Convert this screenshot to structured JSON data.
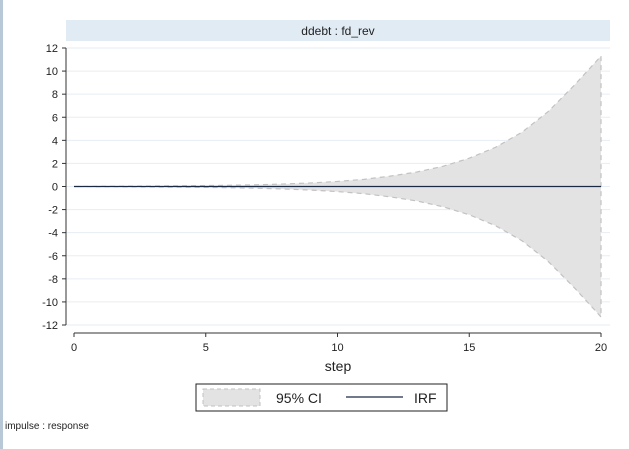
{
  "colors": {
    "panel_header": "#e1ebf3",
    "ci_fill": "#e3e3e3",
    "ci_stroke": "#c2c2c2",
    "irf_line": "#1a2a44",
    "grid": "#e6edf3",
    "axis": "#333333"
  },
  "chart_data": {
    "type": "area",
    "title": "ddebt : fd_rev",
    "xlabel": "step",
    "ylabel": "",
    "xlim": [
      0,
      20
    ],
    "ylim": [
      -12,
      12
    ],
    "x_ticks": [
      0,
      5,
      10,
      15,
      20
    ],
    "y_ticks": [
      12,
      10,
      8,
      6,
      4,
      2,
      0,
      -2,
      -4,
      -6,
      -8,
      -10,
      -12
    ],
    "grid": true,
    "legend_position": "bottom",
    "legend": [
      "95% CI",
      "IRF"
    ],
    "note": "impulse : response",
    "x": [
      0,
      1,
      2,
      3,
      4,
      5,
      6,
      7,
      8,
      9,
      10,
      11,
      12,
      13,
      14,
      15,
      16,
      17,
      18,
      19,
      20
    ],
    "series": [
      {
        "name": "95% CI",
        "kind": "band",
        "upper": [
          0.0,
          0.01,
          0.02,
          0.04,
          0.06,
          0.08,
          0.11,
          0.15,
          0.22,
          0.31,
          0.44,
          0.62,
          0.9,
          1.25,
          1.75,
          2.45,
          3.4,
          4.7,
          6.5,
          8.8,
          11.3
        ],
        "lower": [
          0.0,
          -0.01,
          -0.02,
          -0.04,
          -0.06,
          -0.08,
          -0.11,
          -0.15,
          -0.22,
          -0.31,
          -0.44,
          -0.62,
          -0.9,
          -1.25,
          -1.75,
          -2.45,
          -3.4,
          -4.7,
          -6.5,
          -8.8,
          -11.3
        ]
      },
      {
        "name": "IRF",
        "kind": "line",
        "values": [
          0,
          0,
          0,
          0,
          0,
          0,
          0,
          0,
          0,
          0,
          0,
          0,
          0,
          0,
          0,
          0,
          0,
          0,
          0,
          0,
          0
        ]
      }
    ]
  }
}
